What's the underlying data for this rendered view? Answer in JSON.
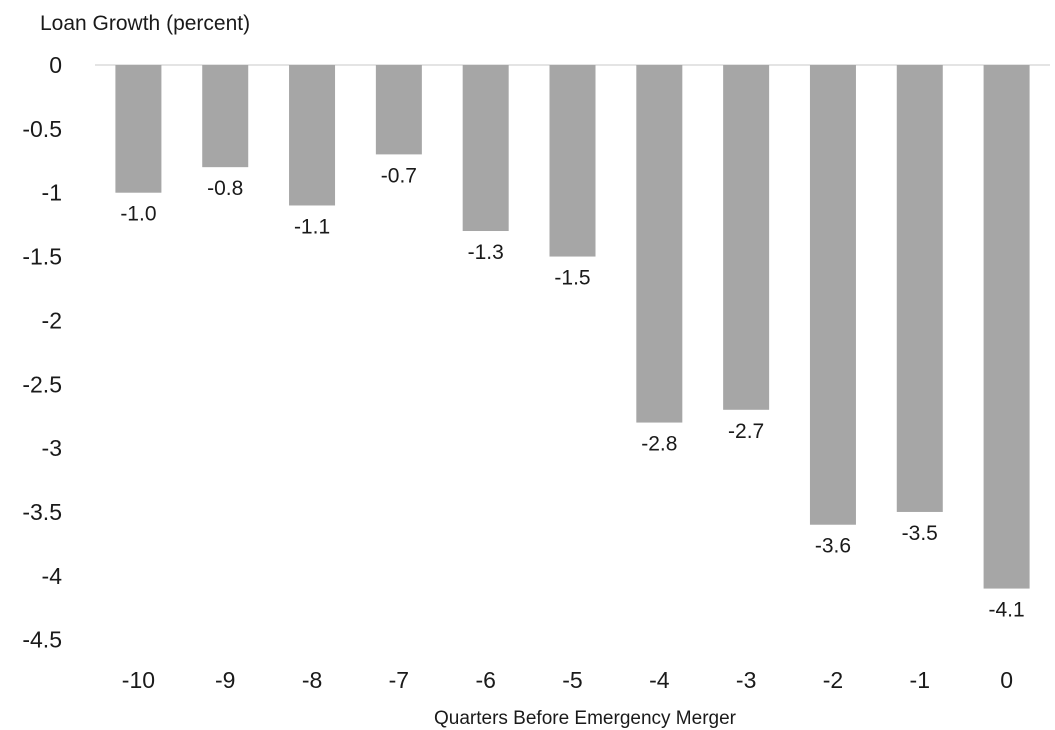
{
  "chart_data": {
    "type": "bar",
    "title": "",
    "ylabel": "Loan Growth (percent)",
    "xlabel": "Quarters Before Emergency Merger",
    "categories": [
      "-10",
      "-9",
      "-8",
      "-7",
      "-6",
      "-5",
      "-4",
      "-3",
      "-2",
      "-1",
      "0"
    ],
    "values": [
      -1.0,
      -0.8,
      -1.1,
      -0.7,
      -1.3,
      -1.5,
      -2.8,
      -2.7,
      -3.6,
      -3.5,
      -4.1
    ],
    "data_labels": [
      "-1.0",
      "-0.8",
      "-1.1",
      "-0.7",
      "-1.3",
      "-1.5",
      "-2.8",
      "-2.7",
      "-3.6",
      "-3.5",
      "-4.1"
    ],
    "ytick_labels": [
      "0",
      "-0.5",
      "-1",
      "-1.5",
      "-2",
      "-2.5",
      "-3",
      "-3.5",
      "-4",
      "-4.5"
    ],
    "yticks": [
      0,
      -0.5,
      -1,
      -1.5,
      -2,
      -2.5,
      -3,
      -3.5,
      -4,
      -4.5
    ],
    "ylim": [
      -4.5,
      0
    ],
    "grid": false,
    "legend": "none",
    "colors": {
      "bar": "#a6a6a6",
      "text": "#1a1a1a",
      "zero_line": "#c8c8c8"
    }
  }
}
